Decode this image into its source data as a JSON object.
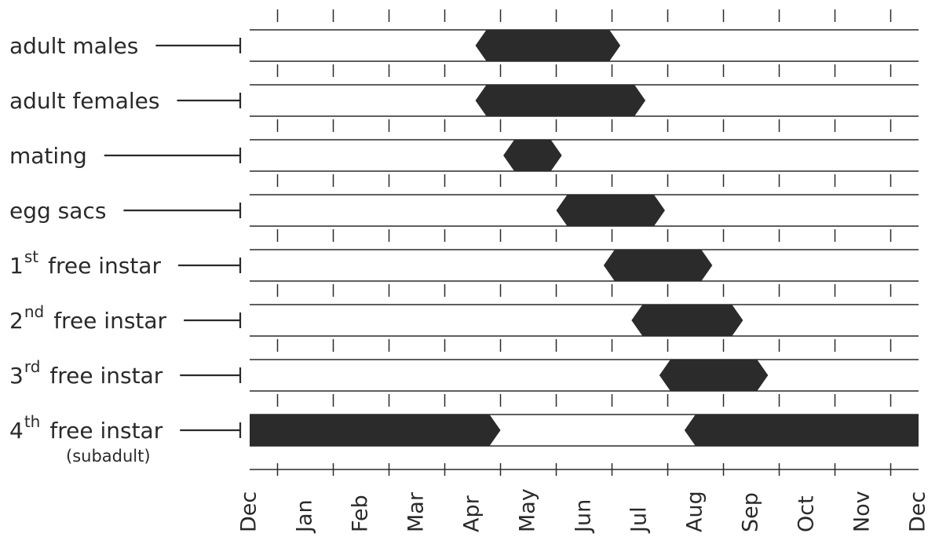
{
  "chart_data": {
    "type": "gantt",
    "months": [
      "Dec",
      "Jan",
      "Feb",
      "Mar",
      "Apr",
      "May",
      "Jun",
      "Jul",
      "Aug",
      "Sep",
      "Oct",
      "Nov",
      "Dec"
    ],
    "x_range_months": [
      0,
      12
    ],
    "rows": [
      {
        "main": "adult males",
        "sup": "",
        "suffix": "",
        "note": "",
        "spans": [
          [
            4.05,
            6.65
          ]
        ]
      },
      {
        "main": "adult females",
        "sup": "",
        "suffix": "",
        "note": "",
        "spans": [
          [
            4.05,
            7.1
          ]
        ]
      },
      {
        "main": "mating",
        "sup": "",
        "suffix": "",
        "note": "",
        "spans": [
          [
            4.55,
            5.6
          ]
        ]
      },
      {
        "main": "egg sacs",
        "sup": "",
        "suffix": "",
        "note": "",
        "spans": [
          [
            5.5,
            7.45
          ]
        ]
      },
      {
        "main": "1",
        "sup": "st",
        "suffix": "free instar",
        "note": "",
        "spans": [
          [
            6.35,
            8.3
          ]
        ]
      },
      {
        "main": "2",
        "sup": "nd",
        "suffix": "free instar",
        "note": "",
        "spans": [
          [
            6.85,
            8.85
          ]
        ]
      },
      {
        "main": "3",
        "sup": "rd",
        "suffix": "free instar",
        "note": "",
        "spans": [
          [
            7.35,
            9.3
          ]
        ]
      },
      {
        "main": "4",
        "sup": "th",
        "suffix": "free instar",
        "note": "(subadult)",
        "spans": [
          [
            0,
            4.5
          ],
          [
            7.8,
            12
          ]
        ]
      }
    ]
  }
}
